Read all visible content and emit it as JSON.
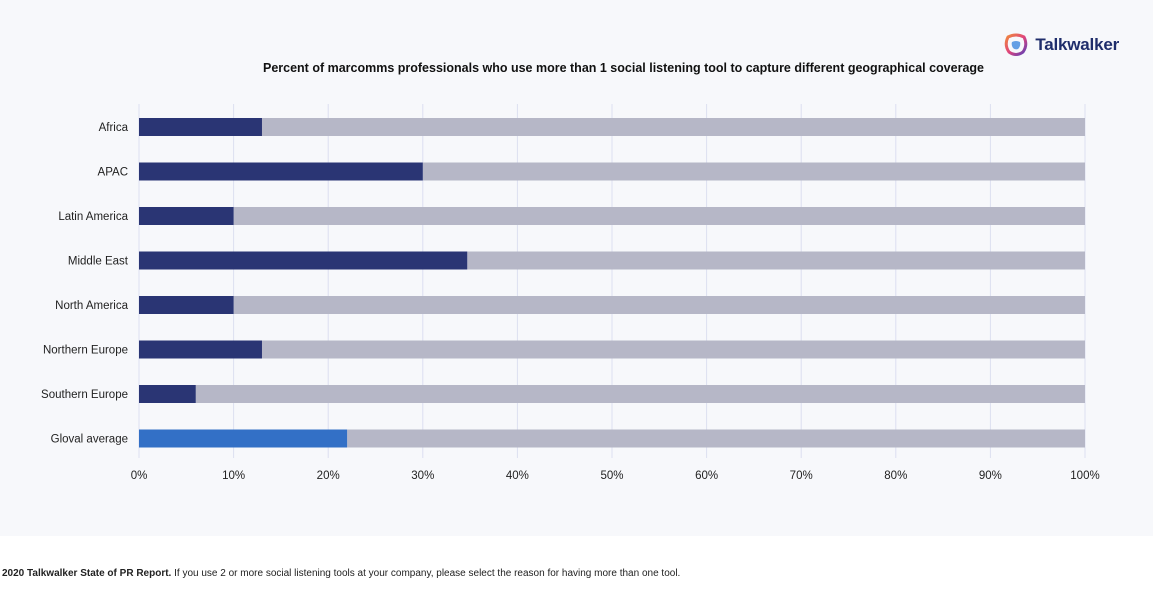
{
  "brand": {
    "name": "Talkwalker",
    "logo_icon": "talkwalker-logo-icon"
  },
  "footnote": {
    "source": "2020 Talkwalker State of PR Report.",
    "question": " If you use 2 or more social listening tools at your company, please select the reason for having more than one tool."
  },
  "colors": {
    "region_bar": "#2a3574",
    "average_bar": "#3370c6",
    "remainder_bar": "#b6b7c7",
    "gridline": "#dcdff0",
    "panel_background": "#f7f8fb"
  },
  "chart_data": {
    "type": "bar",
    "orientation": "horizontal",
    "stacked": true,
    "title": "Percent of marcomms professionals who use more than 1 social listening tool to capture different geographical coverage",
    "categories": [
      "Africa",
      "APAC",
      "Latin America",
      "Middle East",
      "North America",
      "Northern Europe",
      "Southern Europe",
      "Gloval average"
    ],
    "values": [
      13,
      30,
      10,
      34.7,
      10,
      13,
      6,
      22
    ],
    "total": 100,
    "xlim": [
      0,
      100
    ],
    "x_ticks": [
      "0%",
      "10%",
      "20%",
      "30%",
      "40%",
      "50%",
      "60%",
      "70%",
      "80%",
      "90%",
      "100%"
    ],
    "highlight_category": "Gloval average",
    "grid": true,
    "legend": "none"
  }
}
